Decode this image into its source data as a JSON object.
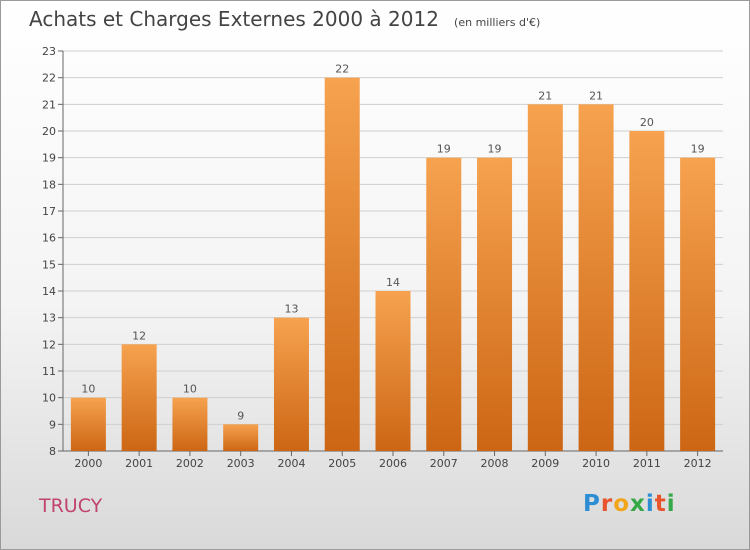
{
  "header": {
    "title": "Achats et Charges Externes 2000 à 2012",
    "unit": "(en milliers d'€)"
  },
  "footer": {
    "commune": "TRUCY",
    "logo_text": "Proxiti",
    "logo_colors": [
      "#2d8ed4",
      "#e8542b",
      "#f2a51a",
      "#37a848",
      "#2d8ed4",
      "#e8542b",
      "#37a848"
    ]
  },
  "colors": {
    "bar_top": "#f6a24f",
    "bar_bottom": "#cc6614",
    "grid": "#cfcfcf",
    "axis": "#666666",
    "commune": "#c0446b"
  },
  "chart_data": {
    "type": "bar",
    "categories": [
      "2000",
      "2001",
      "2002",
      "2003",
      "2004",
      "2005",
      "2006",
      "2007",
      "2008",
      "2009",
      "2010",
      "2011",
      "2012"
    ],
    "values": [
      10,
      12,
      10,
      9,
      13,
      22,
      14,
      19,
      19,
      21,
      21,
      20,
      19
    ],
    "data_labels": [
      "10",
      "12",
      "10",
      "9",
      "13",
      "22",
      "14",
      "19",
      "19",
      "21",
      "21",
      "20",
      "19"
    ],
    "title": "Achats et Charges Externes 2000 à 2012",
    "subtitle": "(en milliers d'€)",
    "ylim": [
      8,
      23
    ],
    "yticks": [
      8,
      9,
      10,
      11,
      12,
      13,
      14,
      15,
      16,
      17,
      18,
      19,
      20,
      21,
      22,
      23
    ],
    "grid": true,
    "legend": "none"
  }
}
